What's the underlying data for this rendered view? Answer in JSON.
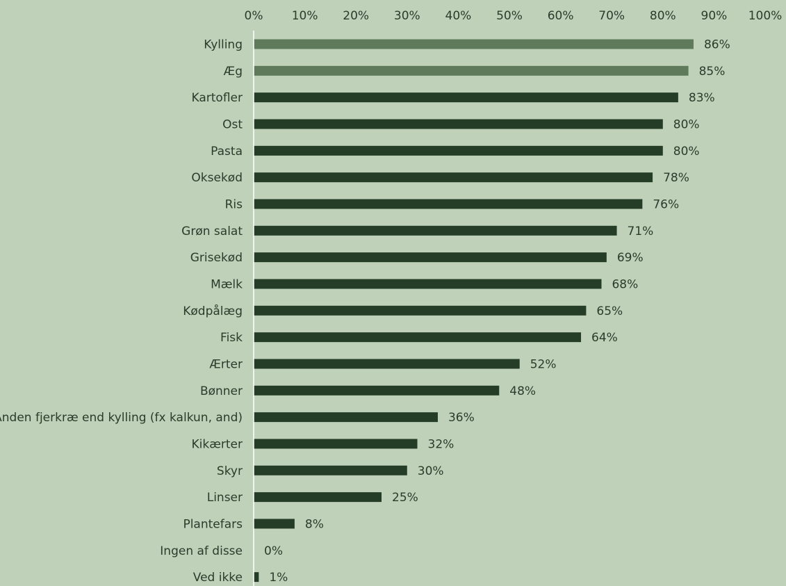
{
  "chart_data": {
    "type": "bar",
    "orientation": "horizontal",
    "title": "",
    "xlabel": "",
    "ylabel": "",
    "xlim": [
      0,
      100
    ],
    "x_ticks": [
      "0%",
      "10%",
      "20%",
      "30%",
      "40%",
      "50%",
      "60%",
      "70%",
      "80%",
      "90%",
      "100%"
    ],
    "x_axis_position": "top",
    "grid": false,
    "legend": "none",
    "value_suffix": "%",
    "categories": [
      "Kylling",
      "Æg",
      "Kartofler",
      "Ost",
      "Pasta",
      "Oksekød",
      "Ris",
      "Grøn salat",
      "Grisekød",
      "Mælk",
      "Kødpålæg",
      "Fisk",
      "Ærter",
      "Bønner",
      "Anden fjerkræ end kylling (fx kalkun, and)",
      "Kikærter",
      "Skyr",
      "Linser",
      "Plantefars",
      "Ingen af disse",
      "Ved ikke"
    ],
    "values": [
      86,
      85,
      83,
      80,
      80,
      78,
      76,
      71,
      69,
      68,
      65,
      64,
      52,
      48,
      36,
      32,
      30,
      25,
      8,
      0,
      1
    ],
    "data_labels": [
      "86%",
      "85%",
      "83%",
      "80%",
      "80%",
      "78%",
      "76%",
      "71%",
      "69%",
      "68%",
      "65%",
      "64%",
      "52%",
      "48%",
      "36%",
      "32%",
      "30%",
      "25%",
      "8%",
      "0%",
      "1%"
    ],
    "highlighted_categories": [
      "Kylling",
      "Æg"
    ],
    "colors": {
      "background": "#bfd1b9",
      "bar": "#253d26",
      "bar_highlight": "#5e7a5a",
      "text": "#2c3b2a",
      "axis_line": "#ffffff"
    }
  }
}
